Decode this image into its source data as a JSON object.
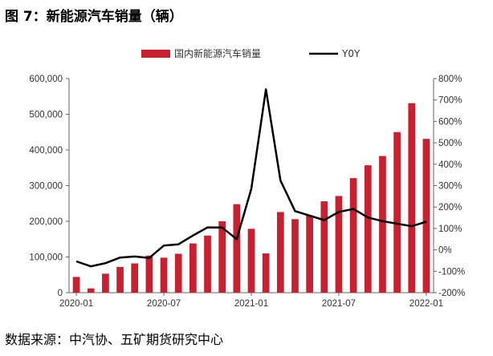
{
  "title": "图 7：新能源汽车销量（辆）",
  "source": "数据来源：中汽协、五矿期货研究中心",
  "chart_data": {
    "type": "bar",
    "colors": {
      "bar": "#c8202f",
      "line": "#000000"
    },
    "x_tick_labels": [
      "2020-01",
      "2020-07",
      "2021-01",
      "2021-07",
      "2022-01"
    ],
    "x": [
      "2020-01",
      "2020-02",
      "2020-03",
      "2020-04",
      "2020-05",
      "2020-06",
      "2020-07",
      "2020-08",
      "2020-09",
      "2020-10",
      "2020-11",
      "2020-12",
      "2021-01",
      "2021-02",
      "2021-03",
      "2021-04",
      "2021-05",
      "2021-06",
      "2021-07",
      "2021-08",
      "2021-09",
      "2021-10",
      "2021-11",
      "2021-12",
      "2022-01"
    ],
    "series": [
      {
        "name": "国内新能源汽车销量",
        "type": "bar",
        "axis": "left",
        "values": [
          44000,
          12000,
          53000,
          72000,
          82000,
          104000,
          98000,
          109000,
          138000,
          160000,
          200000,
          248000,
          179000,
          110000,
          226000,
          206000,
          217000,
          256000,
          271000,
          321000,
          357000,
          383000,
          450000,
          531000,
          431000
        ]
      },
      {
        "name": "Y0Y",
        "type": "line",
        "axis": "right",
        "values": [
          -54,
          -77,
          -62,
          -36,
          -31,
          -38,
          20,
          26,
          67,
          105,
          104,
          50,
          285,
          750,
          324,
          181,
          160,
          139,
          177,
          191,
          151,
          134,
          122,
          110,
          132
        ]
      }
    ],
    "y_left": {
      "min": 0,
      "max": 600000,
      "step": 100000,
      "tick_labels": [
        "0",
        "100,000",
        "200,000",
        "300,000",
        "400,000",
        "500,000",
        "600,000"
      ]
    },
    "y_right": {
      "min": -200,
      "max": 800,
      "step": 100,
      "tick_labels": [
        "-200%",
        "-100%",
        "0%",
        "100%",
        "200%",
        "300%",
        "400%",
        "500%",
        "600%",
        "700%",
        "800%"
      ]
    },
    "legend_position": "top",
    "grid": false
  }
}
